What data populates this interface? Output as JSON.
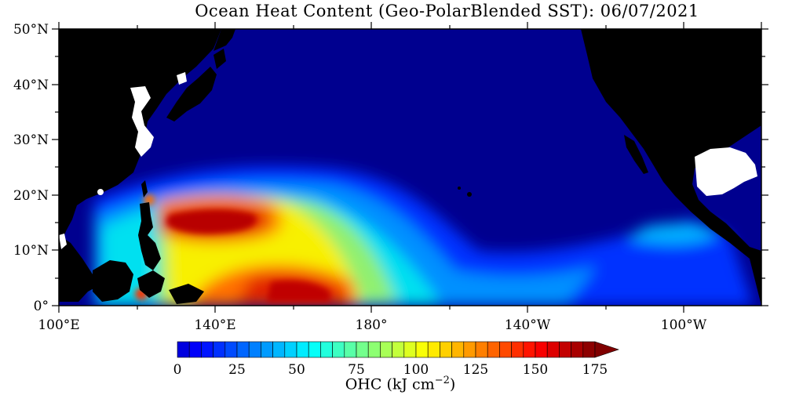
{
  "title": "Ocean Heat Content (Geo-PolarBlended SST): 06/07/2021",
  "map": {
    "lat_labels": [
      "50°N",
      "40°N",
      "30°N",
      "20°N",
      "10°N",
      "0°"
    ],
    "lon_labels": [
      "100°E",
      "140°E",
      "180°",
      "140°W",
      "100°W"
    ],
    "lon_range_deg_east": [
      100,
      280
    ],
    "lat_range_deg": [
      0,
      50
    ],
    "land_color": "#000000"
  },
  "colorbar": {
    "tick_labels": [
      "0",
      "25",
      "50",
      "75",
      "100",
      "125",
      "150",
      "175"
    ],
    "range": [
      0,
      175
    ],
    "step": 5,
    "extends_above": true,
    "label_prefix": "OHC (kJ cm",
    "label_exp": "−2",
    "label_suffix": ")"
  }
}
